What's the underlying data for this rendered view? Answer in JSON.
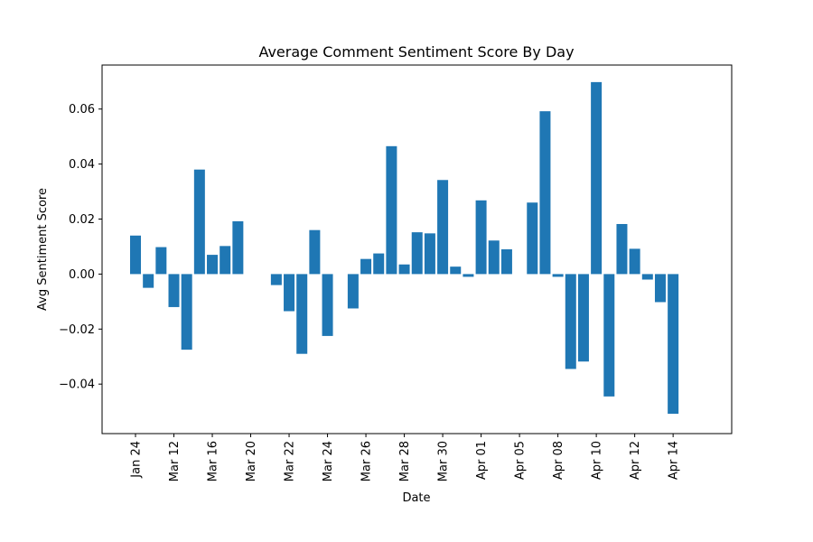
{
  "chart_data": {
    "type": "bar",
    "title": "Average Comment Sentiment Score By Day",
    "xlabel": "Date",
    "ylabel": "Avg Sentiment Score",
    "ylim": [
      -0.058,
      0.076
    ],
    "grid": false,
    "legend": "none",
    "bar_color": "#1f77b4",
    "yticks": [
      -0.04,
      -0.02,
      0.0,
      0.02,
      0.04,
      0.06
    ],
    "ytick_labels": [
      "−0.04",
      "−0.02",
      "0.00",
      "0.02",
      "0.04",
      "0.06"
    ],
    "xticks": [
      {
        "label": "Jan 24",
        "slot": 0
      },
      {
        "label": "Mar 12",
        "slot": 3
      },
      {
        "label": "Mar 16",
        "slot": 6
      },
      {
        "label": "Mar 20",
        "slot": 9
      },
      {
        "label": "Mar 22",
        "slot": 12
      },
      {
        "label": "Mar 24",
        "slot": 15
      },
      {
        "label": "Mar 26",
        "slot": 18
      },
      {
        "label": "Mar 28",
        "slot": 21
      },
      {
        "label": "Mar 30",
        "slot": 24
      },
      {
        "label": "Apr 01",
        "slot": 27
      },
      {
        "label": "Apr 05",
        "slot": 30
      },
      {
        "label": "Apr 08",
        "slot": 33
      },
      {
        "label": "Apr 10",
        "slot": 36
      },
      {
        "label": "Apr 12",
        "slot": 39
      },
      {
        "label": "Apr 14",
        "slot": 42
      }
    ],
    "values": [
      0.014,
      -0.005,
      0.0098,
      -0.012,
      -0.0275,
      0.038,
      0.007,
      0.0102,
      0.0192,
      null,
      null,
      -0.004,
      -0.0135,
      -0.029,
      0.016,
      -0.0225,
      null,
      -0.0125,
      0.0055,
      0.0075,
      0.0465,
      0.0035,
      0.0152,
      0.0148,
      0.0342,
      0.0027,
      -0.001,
      0.0268,
      0.0122,
      0.009,
      null,
      0.026,
      0.0592,
      -0.001,
      -0.0345,
      -0.0318,
      0.0698,
      -0.0445,
      0.0182,
      0.0092,
      -0.002,
      -0.0102,
      -0.0508
    ]
  }
}
